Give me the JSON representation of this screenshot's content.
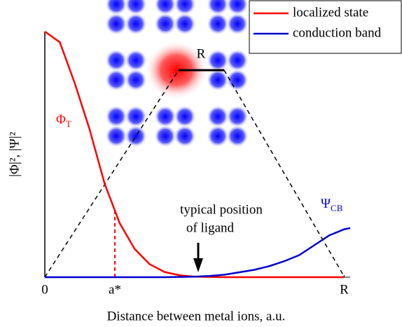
{
  "chart_data": {
    "type": "line",
    "x_label": "Distance between metal ions, a.u.",
    "y_label": "|Φ|², |Ψ|²",
    "xlim": [
      0,
      1.02
    ],
    "ylim": [
      0,
      1
    ],
    "xticks": [
      0,
      {
        "value": 0.234,
        "label": "a*"
      },
      {
        "value": 1,
        "label": "R"
      }
    ],
    "series": [
      {
        "name": "localized state",
        "color": "#ff0000",
        "x": [
          0,
          0.05,
          0.1,
          0.15,
          0.2,
          0.25,
          0.3,
          0.35,
          0.4,
          0.45,
          0.5,
          0.6,
          0.7,
          0.8,
          0.9,
          1.0
        ],
        "values": [
          1,
          0.957,
          0.79,
          0.6,
          0.38,
          0.22,
          0.115,
          0.053,
          0.021,
          0.008,
          0.002,
          0,
          0,
          0,
          0,
          0
        ]
      },
      {
        "name": "conduction band",
        "color": "#0000cc",
        "x": [
          0,
          0.4,
          0.45,
          0.5,
          0.55,
          0.6,
          0.65,
          0.7,
          0.75,
          0.8,
          0.85,
          0.9,
          0.95,
          1.0,
          1.02
        ],
        "values": [
          0,
          0,
          0.001,
          0.002,
          0.005,
          0.01,
          0.02,
          0.03,
          0.045,
          0.065,
          0.09,
          0.13,
          0.17,
          0.195,
          0.2
        ]
      }
    ],
    "legend": "upper right",
    "annotations": {
      "phi": {
        "text": "Φ",
        "sub": "T"
      },
      "psi": {
        "text": "Ψ",
        "sub": "CB"
      },
      "ligand": [
        "typical position",
        "of ligand"
      ],
      "inset_r": "R"
    }
  }
}
